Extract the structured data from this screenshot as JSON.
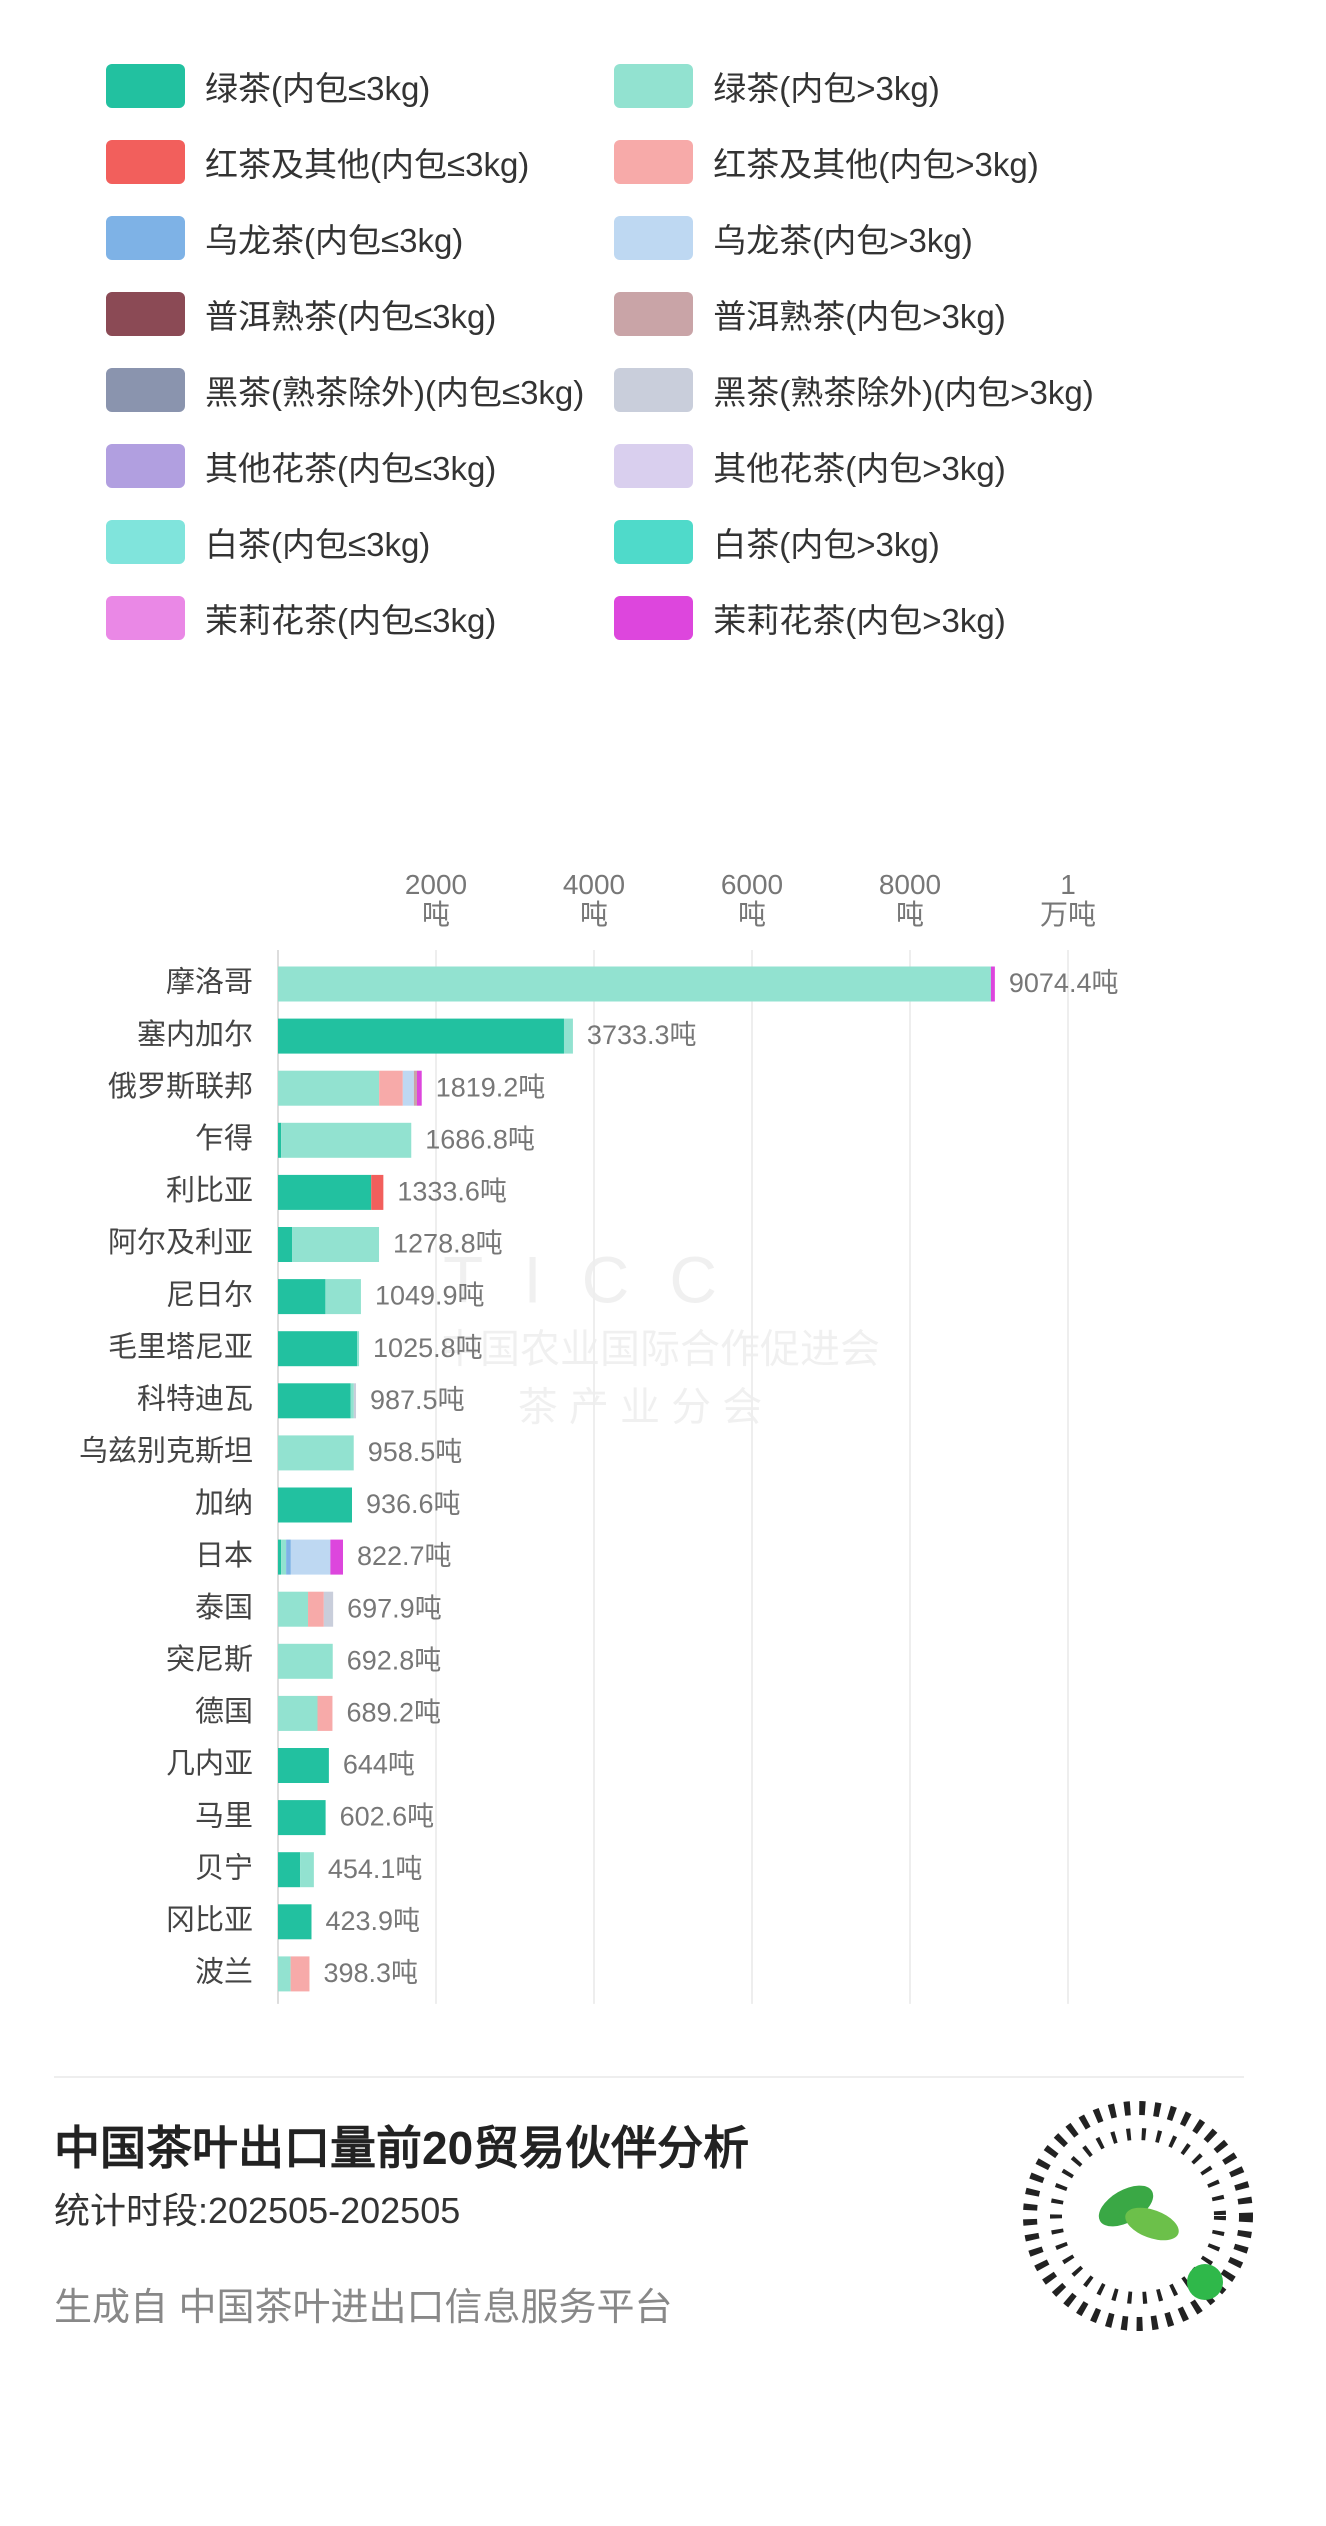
{
  "chart_data": {
    "type": "bar",
    "orientation": "horizontal",
    "stacked": true,
    "categories": [
      "摩洛哥",
      "塞内加尔",
      "俄罗斯联邦",
      "乍得",
      "利比亚",
      "阿尔及利亚",
      "尼日尔",
      "毛里塔尼亚",
      "科特迪瓦",
      "乌兹别克斯坦",
      "加纳",
      "日本",
      "泰国",
      "突尼斯",
      "德国",
      "几内亚",
      "马里",
      "贝宁",
      "冈比亚",
      "波兰"
    ],
    "series": [
      {
        "name": "绿茶(内包≤3kg)",
        "color": "#22c1a0",
        "values": [
          0,
          3620,
          0,
          40,
          1180,
          180,
          600,
          1000,
          920,
          0,
          936.6,
          40,
          0,
          0,
          0,
          644,
          602.6,
          280,
          423.9,
          0
        ]
      },
      {
        "name": "绿茶(内包>3kg)",
        "color": "#92e2d0",
        "values": [
          9024.4,
          113.3,
          1280,
          1646.8,
          0,
          1098.8,
          449.9,
          25.8,
          40,
          958.5,
          0,
          62.7,
          380,
          692.8,
          500,
          0,
          0,
          174.1,
          0,
          160
        ]
      },
      {
        "name": "红茶及其他(内包≤3kg)",
        "color": "#f25f5c",
        "values": [
          0,
          0,
          0,
          0,
          153.6,
          0,
          0,
          0,
          0,
          0,
          0,
          0,
          0,
          0,
          0,
          0,
          0,
          0,
          0,
          0
        ]
      },
      {
        "name": "红茶及其他(内包>3kg)",
        "color": "#f7aaa9",
        "values": [
          0,
          0,
          300,
          0,
          0,
          0,
          0,
          0,
          0,
          0,
          0,
          0,
          200,
          0,
          189.2,
          0,
          0,
          0,
          0,
          238.3
        ]
      },
      {
        "name": "乌龙茶(内包≤3kg)",
        "color": "#7eb2e6",
        "values": [
          0,
          0,
          0,
          0,
          0,
          0,
          0,
          0,
          0,
          0,
          0,
          60,
          0,
          0,
          0,
          0,
          0,
          0,
          0,
          0
        ]
      },
      {
        "name": "乌龙茶(内包>3kg)",
        "color": "#bed8f2",
        "values": [
          0,
          0,
          140,
          0,
          0,
          0,
          0,
          0,
          0,
          0,
          0,
          500,
          0,
          0,
          0,
          0,
          0,
          0,
          0,
          0
        ]
      },
      {
        "name": "普洱熟茶(内包≤3kg)",
        "color": "#8b4a55",
        "values": [
          0,
          0,
          0,
          0,
          0,
          0,
          0,
          0,
          0,
          0,
          0,
          0,
          0,
          0,
          0,
          0,
          0,
          0,
          0,
          0
        ]
      },
      {
        "name": "普洱熟茶(内包>3kg)",
        "color": "#c9a4a7",
        "values": [
          0,
          0,
          39.2,
          0,
          0,
          0,
          0,
          0,
          0,
          0,
          0,
          0,
          0,
          0,
          0,
          0,
          0,
          0,
          0,
          0
        ]
      },
      {
        "name": "黑茶(熟茶除外)(内包≤3kg)",
        "color": "#8a94ae",
        "values": [
          0,
          0,
          0,
          0,
          0,
          0,
          0,
          0,
          0,
          0,
          0,
          0,
          0,
          0,
          0,
          0,
          0,
          0,
          0,
          0
        ]
      },
      {
        "name": "黑茶(熟茶除外)(内包>3kg)",
        "color": "#c9cedb",
        "values": [
          0,
          0,
          0,
          0,
          0,
          0,
          0,
          0,
          27.5,
          0,
          0,
          0,
          117.9,
          0,
          0,
          0,
          0,
          0,
          0,
          0
        ]
      },
      {
        "name": "其他花茶(内包≤3kg)",
        "color": "#b19fe0",
        "values": [
          0,
          0,
          0,
          0,
          0,
          0,
          0,
          0,
          0,
          0,
          0,
          0,
          0,
          0,
          0,
          0,
          0,
          0,
          0,
          0
        ]
      },
      {
        "name": "其他花茶(内包>3kg)",
        "color": "#d9cfee",
        "values": [
          0,
          0,
          0,
          0,
          0,
          0,
          0,
          0,
          0,
          0,
          0,
          0,
          0,
          0,
          0,
          0,
          0,
          0,
          0,
          0
        ]
      },
      {
        "name": "白茶(内包≤3kg)",
        "color": "#80e4dc",
        "values": [
          0,
          0,
          0,
          0,
          0,
          0,
          0,
          0,
          0,
          0,
          0,
          0,
          0,
          0,
          0,
          0,
          0,
          0,
          0,
          0
        ]
      },
      {
        "name": "白茶(内包>3kg)",
        "color": "#4fdaca",
        "values": [
          0,
          0,
          0,
          0,
          0,
          0,
          0,
          0,
          0,
          0,
          0,
          0,
          0,
          0,
          0,
          0,
          0,
          0,
          0,
          0
        ]
      },
      {
        "name": "茉莉花茶(内包≤3kg)",
        "color": "#ea88e6",
        "values": [
          0,
          0,
          0,
          0,
          0,
          0,
          0,
          0,
          0,
          0,
          0,
          0,
          0,
          0,
          0,
          0,
          0,
          0,
          0,
          0
        ]
      },
      {
        "name": "茉莉花茶(内包>3kg)",
        "color": "#dd46dd",
        "values": [
          50,
          0,
          60,
          0,
          0,
          0,
          0,
          0,
          0,
          0,
          0,
          160,
          0,
          0,
          0,
          0,
          0,
          0,
          0,
          0
        ]
      }
    ],
    "totals": {
      "values": [
        9074.4,
        3733.3,
        1819.2,
        1686.8,
        1333.6,
        1278.8,
        1049.9,
        1025.8,
        987.5,
        958.5,
        936.6,
        822.7,
        697.9,
        692.8,
        689.2,
        644,
        602.6,
        454.1,
        423.9,
        398.3
      ],
      "value_labels": [
        "9074.4吨",
        "3733.3吨",
        "1819.2吨",
        "1686.8吨",
        "1333.6吨",
        "1278.8吨",
        "1049.9吨",
        "1025.8吨",
        "987.5吨",
        "958.5吨",
        "936.6吨",
        "822.7吨",
        "697.9吨",
        "692.8吨",
        "689.2吨",
        "644吨",
        "602.6吨",
        "454.1吨",
        "423.9吨",
        "398.3吨"
      ]
    },
    "xlim": [
      0,
      10000
    ],
    "xticks": [
      {
        "value": 2000,
        "label": "2000\n吨"
      },
      {
        "value": 4000,
        "label": "4000\n吨"
      },
      {
        "value": 6000,
        "label": "6000\n吨"
      },
      {
        "value": 8000,
        "label": "8000\n吨"
      },
      {
        "value": 10000,
        "label": "1\n万吨"
      }
    ],
    "grid": true
  },
  "watermark": {
    "logo": "TICC",
    "org": "中国农业国际合作促进会",
    "branch": "茶 产 业 分 会"
  },
  "footer": {
    "title": "中国茶叶出口量前20贸易伙伴分析",
    "period": "统计时段:202505-202505",
    "source": "生成自 中国茶叶进出口信息服务平台"
  }
}
